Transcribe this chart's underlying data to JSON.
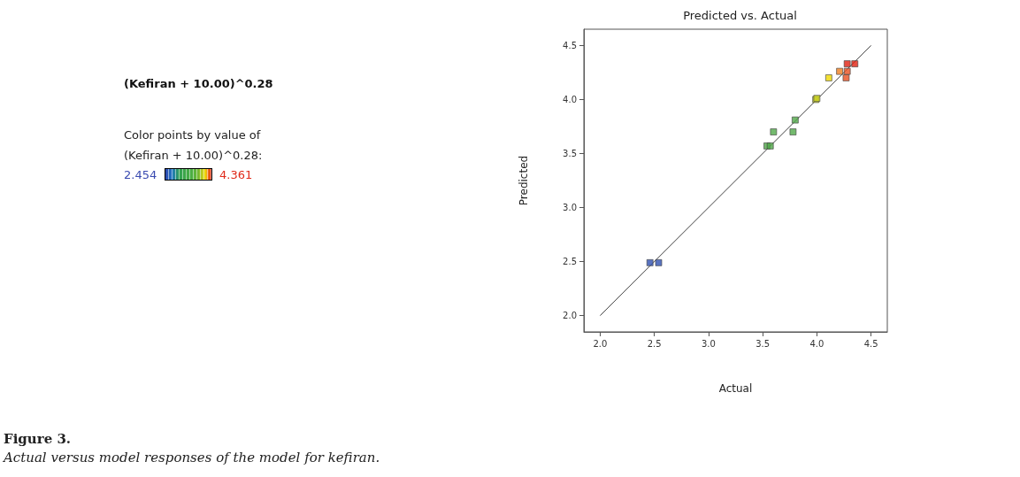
{
  "chart_data": {
    "type": "scatter",
    "title": "Predicted vs. Actual",
    "subtitle": "(Kefiran + 10.00)^0.28",
    "xlabel": "Actual",
    "ylabel": "Predicted",
    "annotations": [
      "Color points by value of\n(Kefiran + 10.00)^0.28:",
      "2.454",
      "4.361",
      "Figure 3.",
      "Actual versus model responses of the model for kefiran."
    ],
    "series": [
      {
        "x": [
          2.46,
          2.54,
          3.54,
          3.57,
          3.6,
          3.78,
          3.8,
          3.99,
          4.0,
          4.11,
          4.21,
          4.27,
          4.28,
          4.28,
          4.35
        ],
        "values": [
          2.49,
          2.49,
          3.57,
          3.57,
          3.7,
          3.7,
          3.81,
          4.0,
          4.01,
          4.2,
          4.26,
          4.2,
          4.26,
          4.33,
          4.33
        ],
        "colors": [
          "#3050b0",
          "#3050b0",
          "#50a848",
          "#50a848",
          "#50a848",
          "#50a848",
          "#50a848",
          "#c8d020",
          "#c8d020",
          "#f0d800",
          "#f08020",
          "#e85020",
          "#e85020",
          "#e02010",
          "#e02010"
        ]
      },
      {
        "type": "line",
        "x": [
          2.0,
          4.5
        ],
        "values": [
          2.0,
          4.5
        ],
        "color": "#404040",
        "marker": "none"
      }
    ],
    "xlim": [
      1.85,
      4.65
    ],
    "ylim": [
      1.85,
      4.65
    ],
    "xticks": [
      {
        "value": 2,
        "label": "2.0"
      },
      2.5,
      {
        "value": 3,
        "label": "3.0"
      },
      3.5,
      {
        "value": 4,
        "label": "4.0"
      },
      4.5
    ],
    "yticks": [
      {
        "value": 2,
        "label": "2.0"
      },
      2.5,
      {
        "value": 3,
        "label": "3.0"
      },
      3.5,
      {
        "value": 4,
        "label": "4.0"
      },
      4.5
    ],
    "grid": false,
    "marker": "square",
    "line_style": "solid"
  }
}
